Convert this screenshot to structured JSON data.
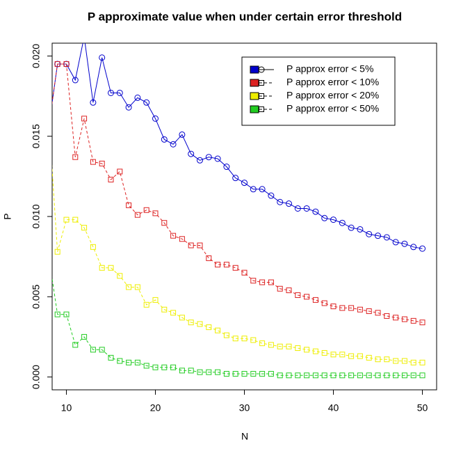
{
  "chart_data": {
    "type": "line",
    "title": "P approximate value when under certain error threshold",
    "xlabel": "N",
    "ylabel": "P",
    "x": [
      8,
      9,
      10,
      11,
      12,
      13,
      14,
      15,
      16,
      17,
      18,
      19,
      20,
      21,
      22,
      23,
      24,
      25,
      26,
      27,
      28,
      29,
      30,
      31,
      32,
      33,
      34,
      35,
      36,
      37,
      38,
      39,
      40,
      41,
      42,
      43,
      44,
      45,
      46,
      47,
      48,
      49,
      50
    ],
    "series": [
      {
        "name": "P approx error < 5%",
        "color": "#0000cc",
        "marker": "circle",
        "dashed": false,
        "values": [
          0.0155,
          0.0195,
          0.0195,
          0.0185,
          0.0212,
          0.0171,
          0.0199,
          0.0177,
          0.0177,
          0.0168,
          0.0174,
          0.0171,
          0.0161,
          0.0148,
          0.0145,
          0.0151,
          0.0139,
          0.0135,
          0.0137,
          0.0136,
          0.0131,
          0.0124,
          0.0121,
          0.0117,
          0.0117,
          0.0113,
          0.0109,
          0.0108,
          0.0105,
          0.0105,
          0.0103,
          0.0099,
          0.0098,
          0.0096,
          0.0093,
          0.0092,
          0.0089,
          0.0088,
          0.0087,
          0.0084,
          0.0083,
          0.0081,
          0.008
        ]
      },
      {
        "name": "P approx error < 10%",
        "color": "#dd2222",
        "marker": "square",
        "dashed": true,
        "values": [
          0.0155,
          0.0195,
          0.0195,
          0.0137,
          0.0161,
          0.0134,
          0.0133,
          0.0123,
          0.0128,
          0.0107,
          0.0101,
          0.0104,
          0.0102,
          0.0096,
          0.0088,
          0.0086,
          0.0082,
          0.0082,
          0.0074,
          0.007,
          0.007,
          0.0068,
          0.0065,
          0.006,
          0.0059,
          0.0059,
          0.0055,
          0.0054,
          0.0051,
          0.005,
          0.0048,
          0.0046,
          0.0044,
          0.0043,
          0.0043,
          0.0042,
          0.0041,
          0.004,
          0.0038,
          0.0037,
          0.0036,
          0.0035,
          0.0034
        ]
      },
      {
        "name": "P approx error < 20%",
        "color": "#eeee00",
        "marker": "square",
        "dashed": true,
        "values": [
          0.0163,
          0.0078,
          0.0098,
          0.0098,
          0.0093,
          0.0081,
          0.0068,
          0.0068,
          0.0063,
          0.0056,
          0.0056,
          0.0045,
          0.0048,
          0.0042,
          0.004,
          0.0037,
          0.0034,
          0.0033,
          0.0031,
          0.0029,
          0.0026,
          0.0024,
          0.0024,
          0.0023,
          0.0021,
          0.002,
          0.0019,
          0.0019,
          0.0018,
          0.0017,
          0.0016,
          0.0015,
          0.0014,
          0.0014,
          0.0013,
          0.0013,
          0.0012,
          0.0011,
          0.0011,
          0.001,
          0.001,
          0.0009,
          0.0009
        ]
      },
      {
        "name": "P approx error < 50%",
        "color": "#22cc22",
        "marker": "square",
        "dashed": true,
        "values": [
          0.0076,
          0.0039,
          0.0039,
          0.002,
          0.0025,
          0.0017,
          0.0017,
          0.0012,
          0.001,
          0.0009,
          0.0009,
          0.0007,
          0.0006,
          0.0006,
          0.0006,
          0.0004,
          0.0004,
          0.0003,
          0.0003,
          0.0003,
          0.0002,
          0.0002,
          0.0002,
          0.0002,
          0.0002,
          0.0002,
          0.0001,
          0.0001,
          0.0001,
          0.0001,
          0.0001,
          0.0001,
          0.0001,
          0.0001,
          0.0001,
          0.0001,
          0.0001,
          0.0001,
          0.0001,
          0.0001,
          0.0001,
          0.0001,
          0.0001
        ]
      }
    ],
    "xlim": [
      8.4,
      51.6
    ],
    "ylim": [
      -0.0008,
      0.0208
    ],
    "xticks": [
      10,
      20,
      30,
      40,
      50
    ],
    "yticks": [
      {
        "value": 0,
        "label": "0.000"
      },
      {
        "value": 0.005,
        "label": "0.005"
      },
      {
        "value": 0.01,
        "label": "0.010"
      },
      {
        "value": 0.015,
        "label": "0.015"
      },
      {
        "value": 0.02,
        "label": "0.020"
      }
    ],
    "legend": "topright"
  }
}
